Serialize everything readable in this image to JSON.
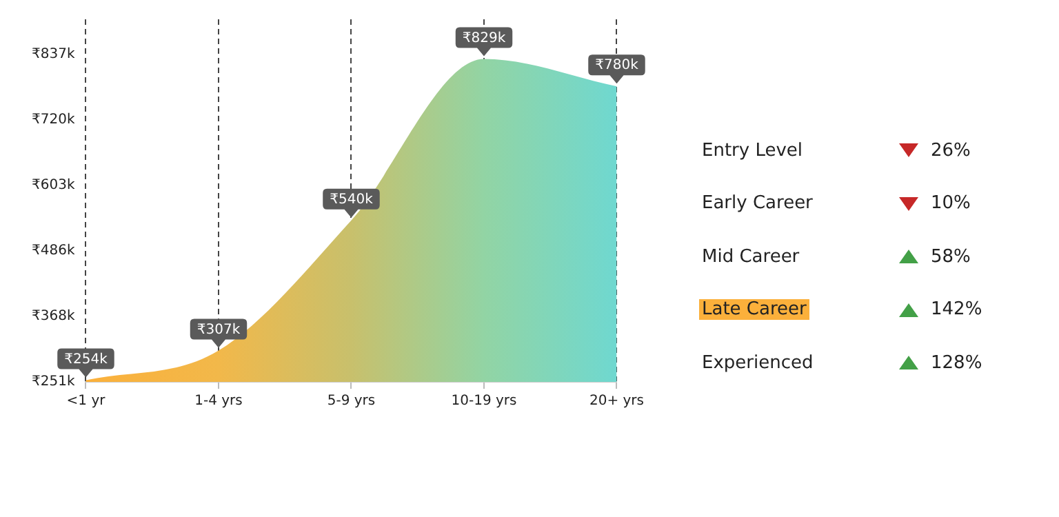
{
  "chart_data": [
    {
      "type": "area",
      "categories": [
        "<1 yr",
        "1-4 yrs",
        "5-9 yrs",
        "10-19 yrs",
        "20+ yrs"
      ],
      "values": [
        254,
        307,
        540,
        829,
        780
      ],
      "colors": [
        "#fbb03b",
        "#f2b84a",
        "#c8c06c",
        "#92d4a4",
        "#6fd8d0"
      ],
      "value_labels": [
        "₹254k",
        "₹307k",
        "₹540k",
        "₹829k",
        "₹780k"
      ],
      "ylim": [
        251,
        900
      ],
      "yticks": [
        {
          "value": 251,
          "label": "₹251k"
        },
        {
          "value": 368,
          "label": "₹368k"
        },
        {
          "value": 486,
          "label": "₹486k"
        },
        {
          "value": 603,
          "label": "₹603k"
        },
        {
          "value": 720,
          "label": "₹720k"
        },
        {
          "value": 837,
          "label": "₹837k"
        }
      ],
      "grid": "x",
      "line_style": "dashed",
      "marker": "none",
      "legend": false
    },
    {
      "type": "other",
      "categories": [
        "Entry Level",
        "Early Career",
        "Mid Career",
        "Late Career",
        "Experienced"
      ],
      "colors": [
        "#c62828",
        "#c62828",
        "#43a047",
        "#43a047",
        "#43a047"
      ],
      "annotations": [
        {
          "text": "26%",
          "x": "Entry Level"
        },
        {
          "text": "10%",
          "x": "Early Career"
        },
        {
          "text": "58%",
          "x": "Mid Career"
        },
        {
          "text": "142%",
          "x": "Late Career"
        },
        {
          "text": "128%",
          "x": "Experienced"
        }
      ]
    }
  ]
}
